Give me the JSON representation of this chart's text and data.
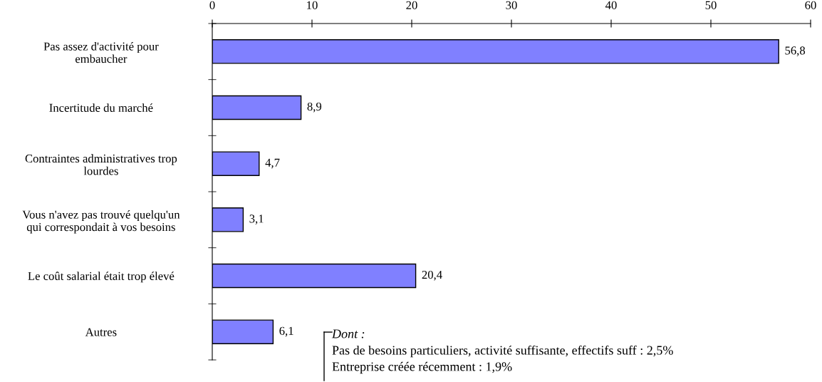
{
  "chart_data": {
    "type": "bar",
    "orientation": "horizontal",
    "categories": [
      "Pas assez d'activité pour\nembaucher",
      "Incertitude du marché",
      "Contraintes administratives trop\nlourdes",
      "Vous n'avez pas trouvé quelqu'un\nqui correspondait à vos besoins",
      "Le coût salarial était trop élevé",
      "Autres"
    ],
    "values": [
      56.8,
      8.9,
      4.7,
      3.1,
      20.4,
      6.1
    ],
    "value_labels": [
      "56,8",
      "8,9",
      "4,7",
      "3,1",
      "20,4",
      "6,1"
    ],
    "color": "#8080ff",
    "xlim": [
      0,
      60
    ],
    "xticks": [
      0,
      10,
      20,
      30,
      40,
      50,
      60
    ],
    "grid": false,
    "annotations": [
      "Dont :",
      "Pas de besoins particuliers, activité suffisante, effectifs suff : 2,5%",
      "Entreprise créée récemment : 1,9%"
    ]
  }
}
